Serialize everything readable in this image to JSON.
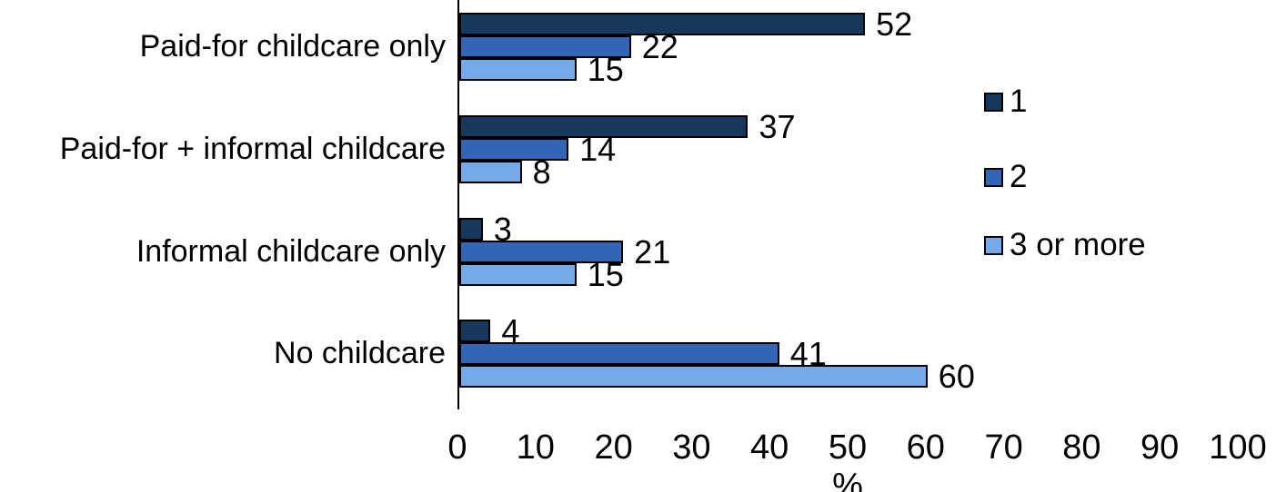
{
  "chart_data": {
    "type": "bar",
    "orientation": "horizontal",
    "title": "",
    "xlabel": "%",
    "ylabel": "",
    "categories": [
      "Paid-for childcare only",
      "Paid-for + informal childcare",
      "Informal childcare only",
      "No childcare"
    ],
    "series": [
      {
        "name": "1",
        "color": "#17375C",
        "values": [
          52,
          37,
          3,
          4
        ]
      },
      {
        "name": "2",
        "color": "#3365B7",
        "values": [
          22,
          14,
          21,
          41
        ]
      },
      {
        "name": "3 or more",
        "color": "#76A9EA",
        "values": [
          15,
          8,
          15,
          60
        ]
      }
    ],
    "value_labels": [
      [
        "52",
        "22",
        "15"
      ],
      [
        "37",
        "14",
        "8"
      ],
      [
        "3",
        "21",
        "15"
      ],
      [
        "4",
        "41",
        "60"
      ]
    ],
    "xlim": [
      0,
      100
    ],
    "x_ticks": [
      "0",
      "10",
      "20",
      "30",
      "40",
      "50",
      "60",
      "70",
      "80",
      "90",
      "100"
    ],
    "grid": false,
    "legend_position": "right",
    "bar_border_color": "#000000",
    "axis_line_color": "#000000"
  }
}
